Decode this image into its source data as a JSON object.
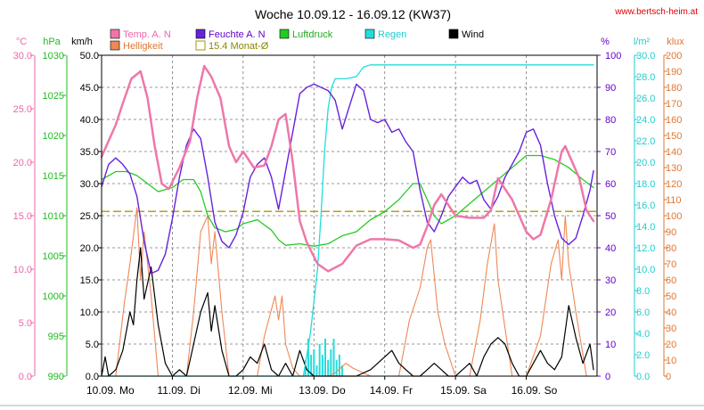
{
  "chart_data": {
    "type": "line",
    "title": "Woche 10.09.12 - 16.09.12 (KW37)",
    "website": "www.bertsch-heim.at",
    "x_labels": [
      "10.09.",
      "Mo",
      "11.09.",
      "Di",
      "12.09.",
      "Mi",
      "13.09.",
      "Do",
      "14.09.",
      "Fr",
      "15.09.",
      "Sa",
      "16.09.",
      "So"
    ],
    "x_range_days": [
      0,
      7
    ],
    "grid": true,
    "axes": {
      "temp": {
        "unit": "°C",
        "min": 0,
        "max": 30,
        "ticks": [
          "0.0",
          "5.0",
          "10.0",
          "15.0",
          "20.0",
          "25.0",
          "30.0"
        ],
        "color": "#ee66aa"
      },
      "pressure": {
        "unit": "hPa",
        "min": 990,
        "max": 1030,
        "ticks": [
          "990",
          "995",
          "1000",
          "1005",
          "1010",
          "1015",
          "1020",
          "1025",
          "1030"
        ],
        "color": "#22bb22"
      },
      "wind": {
        "unit": "km/h",
        "min": 0,
        "max": 50,
        "ticks": [
          "0.0",
          "5.0",
          "10.0",
          "15.0",
          "20.0",
          "25.0",
          "30.0",
          "35.0",
          "40.0",
          "45.0",
          "50.0"
        ],
        "color": "#000000"
      },
      "humidity": {
        "unit": "%",
        "min": 0,
        "max": 100,
        "ticks": [
          "0",
          "10",
          "20",
          "30",
          "40",
          "50",
          "60",
          "70",
          "80",
          "90",
          "100"
        ],
        "color": "#6600cc"
      },
      "rain": {
        "unit": "l/m²",
        "min": 0,
        "max": 30,
        "ticks": [
          "0.0",
          "2.0",
          "4.0",
          "6.0",
          "8.0",
          "10.0",
          "12.0",
          "14.0",
          "16.0",
          "18.0",
          "20.0",
          "22.0",
          "24.0",
          "26.0",
          "28.0",
          "30.0"
        ],
        "color": "#22cccc"
      },
      "light": {
        "unit": "klux",
        "min": 0,
        "max": 200,
        "ticks": [
          "0",
          "10",
          "20",
          "30",
          "40",
          "50",
          "60",
          "70",
          "80",
          "90",
          "100",
          "110",
          "120",
          "130",
          "140",
          "150",
          "160",
          "170",
          "180",
          "190",
          "200"
        ],
        "color": "#dd7733"
      }
    },
    "legend": [
      {
        "label": "Temp. A. N",
        "color": "#ee77aa"
      },
      {
        "label": "Feuchte A. N",
        "color": "#6622dd"
      },
      {
        "label": "Luftdruck",
        "color": "#22cc22"
      },
      {
        "label": "Regen",
        "color": "#22dddd"
      },
      {
        "label": "Wind",
        "color": "#000000"
      },
      {
        "label": "Helligkeit",
        "color": "#ee8855"
      },
      {
        "label": "15.4 Monat-Ø",
        "color": "#aa9900"
      }
    ],
    "series": [
      {
        "name": "Temp. A. N",
        "axis": "temp",
        "color": "#ee77aa",
        "x": [
          0,
          0.1,
          0.2,
          0.3,
          0.42,
          0.55,
          0.65,
          0.75,
          0.85,
          0.95,
          1.1,
          1.25,
          1.35,
          1.45,
          1.55,
          1.68,
          1.8,
          1.9,
          2.0,
          2.15,
          2.3,
          2.4,
          2.5,
          2.6,
          2.7,
          2.8,
          2.9,
          3.05,
          3.2,
          3.4,
          3.6,
          3.8,
          4.0,
          4.2,
          4.4,
          4.5,
          4.6,
          4.7,
          4.8,
          5.0,
          5.2,
          5.4,
          5.5,
          5.6,
          5.8,
          6.0,
          6.1,
          6.2,
          6.35,
          6.5,
          6.55,
          6.65,
          6.75,
          6.85,
          6.95
        ],
        "y": [
          20.5,
          22,
          23.5,
          25.5,
          27.8,
          28.5,
          26,
          21.5,
          18,
          17.5,
          19.5,
          22,
          26,
          29,
          28,
          26,
          21.5,
          20,
          21,
          19.5,
          19.7,
          21.5,
          24,
          24.5,
          20,
          14.5,
          12.5,
          10.5,
          9.8,
          10.5,
          12.2,
          12.8,
          12.8,
          12.7,
          12,
          12.3,
          14,
          16,
          17,
          15,
          14.8,
          14.8,
          15.5,
          18.5,
          16.5,
          13.5,
          12.8,
          13.2,
          16.5,
          21,
          21.5,
          20,
          18.5,
          15.5,
          14.5
        ]
      },
      {
        "name": "Feuchte A. N",
        "axis": "humidity",
        "color": "#6622dd",
        "x": [
          0,
          0.1,
          0.2,
          0.3,
          0.4,
          0.5,
          0.6,
          0.7,
          0.8,
          0.9,
          1.0,
          1.1,
          1.2,
          1.3,
          1.4,
          1.5,
          1.6,
          1.7,
          1.8,
          1.9,
          2.0,
          2.1,
          2.2,
          2.3,
          2.4,
          2.5,
          2.6,
          2.7,
          2.8,
          2.9,
          3.0,
          3.1,
          3.2,
          3.3,
          3.4,
          3.5,
          3.6,
          3.7,
          3.8,
          3.9,
          4.0,
          4.1,
          4.2,
          4.3,
          4.4,
          4.5,
          4.6,
          4.7,
          4.8,
          4.9,
          5.0,
          5.1,
          5.2,
          5.3,
          5.4,
          5.5,
          5.6,
          5.7,
          5.8,
          5.9,
          6.0,
          6.1,
          6.2,
          6.3,
          6.4,
          6.5,
          6.6,
          6.7,
          6.8,
          6.9,
          6.95
        ],
        "y": [
          59,
          66,
          68,
          66,
          63,
          56,
          42,
          32,
          33,
          38,
          49,
          62,
          72,
          77,
          74,
          62,
          48,
          42,
          40,
          44,
          51,
          62,
          66,
          68,
          62,
          52,
          64,
          76,
          88,
          90,
          91,
          90,
          89,
          86,
          77,
          84,
          91,
          89,
          80,
          79,
          80,
          76,
          77,
          73,
          70,
          58,
          48,
          45,
          50,
          56,
          59,
          62,
          60,
          61,
          55,
          52,
          56,
          62,
          66,
          70,
          76,
          77,
          72,
          60,
          50,
          43,
          41,
          43,
          50,
          58,
          64
        ]
      },
      {
        "name": "Luftdruck",
        "axis": "pressure",
        "color": "#22cc22",
        "x": [
          0,
          0.2,
          0.35,
          0.5,
          0.65,
          0.8,
          1.0,
          1.15,
          1.3,
          1.4,
          1.5,
          1.6,
          1.75,
          1.9,
          2.0,
          2.2,
          2.4,
          2.5,
          2.6,
          2.8,
          3.0,
          3.2,
          3.4,
          3.6,
          3.8,
          4.0,
          4.2,
          4.4,
          4.5,
          4.6,
          4.7,
          4.8,
          5.0,
          5.2,
          5.4,
          5.6,
          5.8,
          6.0,
          6.2,
          6.4,
          6.6,
          6.8,
          6.95
        ],
        "y": [
          1014.5,
          1015.5,
          1015.5,
          1015,
          1014,
          1013,
          1013.5,
          1014.5,
          1014.5,
          1013,
          1010,
          1008.5,
          1008,
          1008.3,
          1009,
          1009.5,
          1008.2,
          1007,
          1006.3,
          1006.5,
          1006.2,
          1006.5,
          1007.5,
          1008,
          1009.5,
          1010.5,
          1012,
          1014,
          1014,
          1012,
          1010,
          1009,
          1010,
          1011.5,
          1013,
          1014.5,
          1016,
          1017.5,
          1017.5,
          1017,
          1016,
          1014.5,
          1013.5
        ]
      },
      {
        "name": "Regen",
        "axis": "rain",
        "color": "#22dddd",
        "x": [
          0,
          2.85,
          2.95,
          3.05,
          3.1,
          3.15,
          3.2,
          3.25,
          3.3,
          3.45,
          3.6,
          3.7,
          3.8,
          3.9,
          4.0,
          5.0,
          6.0,
          6.95
        ],
        "y": [
          0,
          0,
          4,
          10,
          15,
          21,
          25,
          27,
          27.8,
          27.8,
          28.0,
          28.9,
          29.1,
          29.1,
          29.1,
          29.1,
          29.1,
          29.1
        ]
      },
      {
        "name": "Helligkeit",
        "axis": "light",
        "color": "#ee8855",
        "x": [
          0,
          0.2,
          0.32,
          0.4,
          0.5,
          0.55,
          0.6,
          0.7,
          0.8,
          1.2,
          1.3,
          1.4,
          1.5,
          1.55,
          1.6,
          1.7,
          1.8,
          2.2,
          2.3,
          2.45,
          2.5,
          2.55,
          2.6,
          2.7,
          2.8,
          3.2,
          3.3,
          3.45,
          3.55,
          3.65,
          3.8,
          4.2,
          4.35,
          4.5,
          4.6,
          4.65,
          4.75,
          4.85,
          5.0,
          5.2,
          5.35,
          5.45,
          5.55,
          5.6,
          5.7,
          5.8,
          6.0,
          6.2,
          6.35,
          6.45,
          6.5,
          6.55,
          6.6,
          6.7,
          6.85,
          6.95
        ],
        "y": [
          0,
          0,
          45,
          70,
          105,
          60,
          90,
          50,
          0,
          0,
          40,
          90,
          100,
          70,
          90,
          40,
          0,
          0,
          25,
          50,
          35,
          50,
          20,
          5,
          0,
          0,
          2,
          8,
          5,
          3,
          0,
          0,
          35,
          55,
          80,
          85,
          40,
          20,
          0,
          0,
          35,
          70,
          95,
          60,
          30,
          0,
          0,
          25,
          70,
          85,
          60,
          100,
          70,
          40,
          0,
          0
        ]
      },
      {
        "name": "Wind",
        "axis": "wind",
        "color": "#000000",
        "x": [
          0,
          0.05,
          0.1,
          0.2,
          0.3,
          0.4,
          0.45,
          0.5,
          0.55,
          0.6,
          0.7,
          0.8,
          0.9,
          1.0,
          1.1,
          1.2,
          1.3,
          1.4,
          1.5,
          1.55,
          1.6,
          1.7,
          1.8,
          1.9,
          2.0,
          2.1,
          2.2,
          2.3,
          2.4,
          2.5,
          2.6,
          2.7,
          2.8,
          2.9,
          3.0,
          3.2,
          3.4,
          3.6,
          3.8,
          4.0,
          4.1,
          4.2,
          4.3,
          4.4,
          4.5,
          4.6,
          4.7,
          4.8,
          4.9,
          5.0,
          5.1,
          5.2,
          5.3,
          5.4,
          5.5,
          5.6,
          5.7,
          5.8,
          5.9,
          6.0,
          6.1,
          6.2,
          6.3,
          6.4,
          6.5,
          6.55,
          6.6,
          6.7,
          6.8,
          6.9,
          6.95
        ],
        "y": [
          0,
          3,
          0,
          1,
          4,
          10,
          8,
          15,
          20,
          12,
          17,
          8,
          2,
          0,
          1,
          0,
          5,
          10,
          13,
          7,
          11,
          4,
          0,
          0,
          1,
          3,
          2,
          5,
          1,
          0,
          2,
          0,
          4,
          1,
          0,
          0,
          0,
          0,
          1,
          3,
          4,
          2,
          1,
          0,
          0,
          1,
          2,
          1,
          0,
          0,
          1,
          2,
          0,
          3,
          5,
          6,
          5,
          2,
          0,
          0,
          2,
          4,
          2,
          1,
          3,
          7,
          11,
          6,
          2,
          5,
          1
        ]
      }
    ],
    "rain_bars": {
      "name": "Regen",
      "axis": "rain",
      "color": "#22dddd",
      "x": [
        2.88,
        2.92,
        2.96,
        3.0,
        3.04,
        3.08,
        3.12,
        3.16,
        3.2,
        3.24,
        3.28,
        3.32,
        3.36,
        3.4
      ],
      "y": [
        1.5,
        3.5,
        2.0,
        2.5,
        1.0,
        3.0,
        2.0,
        3.5,
        1.5,
        2.5,
        3.5,
        1.5,
        2.0,
        1.0
      ]
    },
    "reference_line": {
      "name": "15.4 Monat-Ø",
      "axis": "temp",
      "value": 15.4,
      "color": "#aa9900",
      "style": "dashed"
    }
  }
}
